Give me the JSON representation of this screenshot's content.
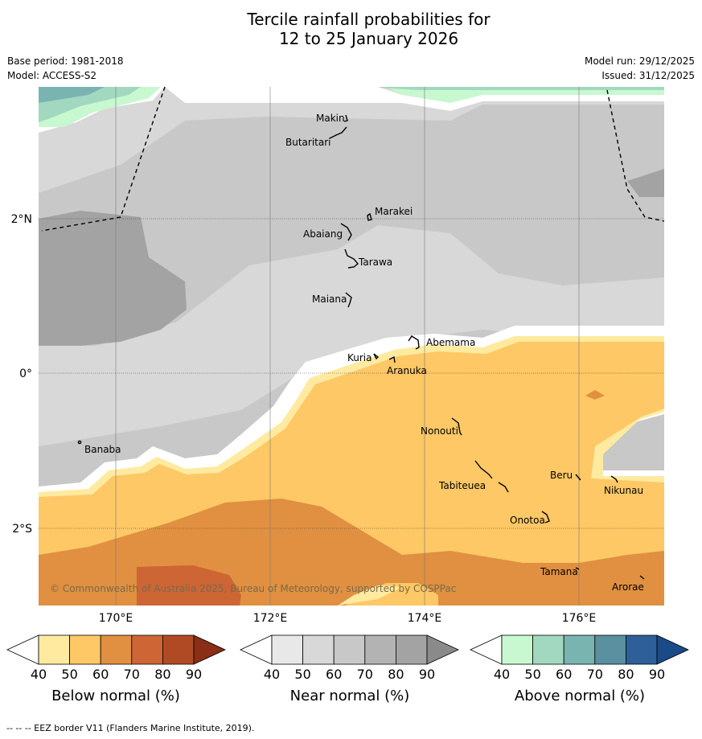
{
  "title": {
    "line1": "Tercile rainfall probabilities for",
    "line2": "12 to 25 January 2026"
  },
  "meta": {
    "base_period": "Base period: 1981-2018",
    "model": "Model: ACCESS-S2",
    "model_run": "Model run: 29/12/2025",
    "issued": "Issued: 31/12/2025"
  },
  "axes": {
    "lat_labels": [
      "2°N",
      "0°",
      "2°S"
    ],
    "lon_labels": [
      "170°E",
      "172°E",
      "174°E",
      "176°E"
    ]
  },
  "places": {
    "makin": "Makin",
    "butaritari": "Butaritari",
    "marakei": "Marakei",
    "abaiang": "Abaiang",
    "tarawa": "Tarawa",
    "maiana": "Maiana",
    "abemama": "Abemama",
    "kuria": "Kuria",
    "aranuka": "Aranuka",
    "banaba": "Banaba",
    "nonouti": "Nonouti",
    "beru": "Beru",
    "tabiteuea": "Tabiteuea",
    "nikunau": "Nikunau",
    "onotoa": "Onotoa",
    "tamana": "Tamana",
    "arorae": "Arorae"
  },
  "copyright": "© Commonwealth of Australia 2025, Bureau of Meteorology, supported by COSPPac",
  "colorbars": {
    "ticks": [
      "40",
      "50",
      "60",
      "70",
      "80",
      "90"
    ],
    "below": {
      "label": "Below normal (%)",
      "colors": [
        "#ffffff",
        "#ffeaa0",
        "#fdc865",
        "#e09040",
        "#cd6535",
        "#b04a25",
        "#8a2e15"
      ]
    },
    "near": {
      "label": "Near normal (%)",
      "colors": [
        "#ffffff",
        "#e8e8e8",
        "#d8d8d8",
        "#c8c8c8",
        "#b3b3b3",
        "#a3a3a3",
        "#8a8a8a"
      ]
    },
    "above": {
      "label": "Above normal (%)",
      "colors": [
        "#ffffff",
        "#c8f8d0",
        "#a3d8c0",
        "#7ab4b0",
        "#5a90a0",
        "#2e5f98",
        "#1a4a88"
      ]
    }
  },
  "footer": "--  --  -- EEZ border V11 (Flanders Marine Institute, 2019)."
}
